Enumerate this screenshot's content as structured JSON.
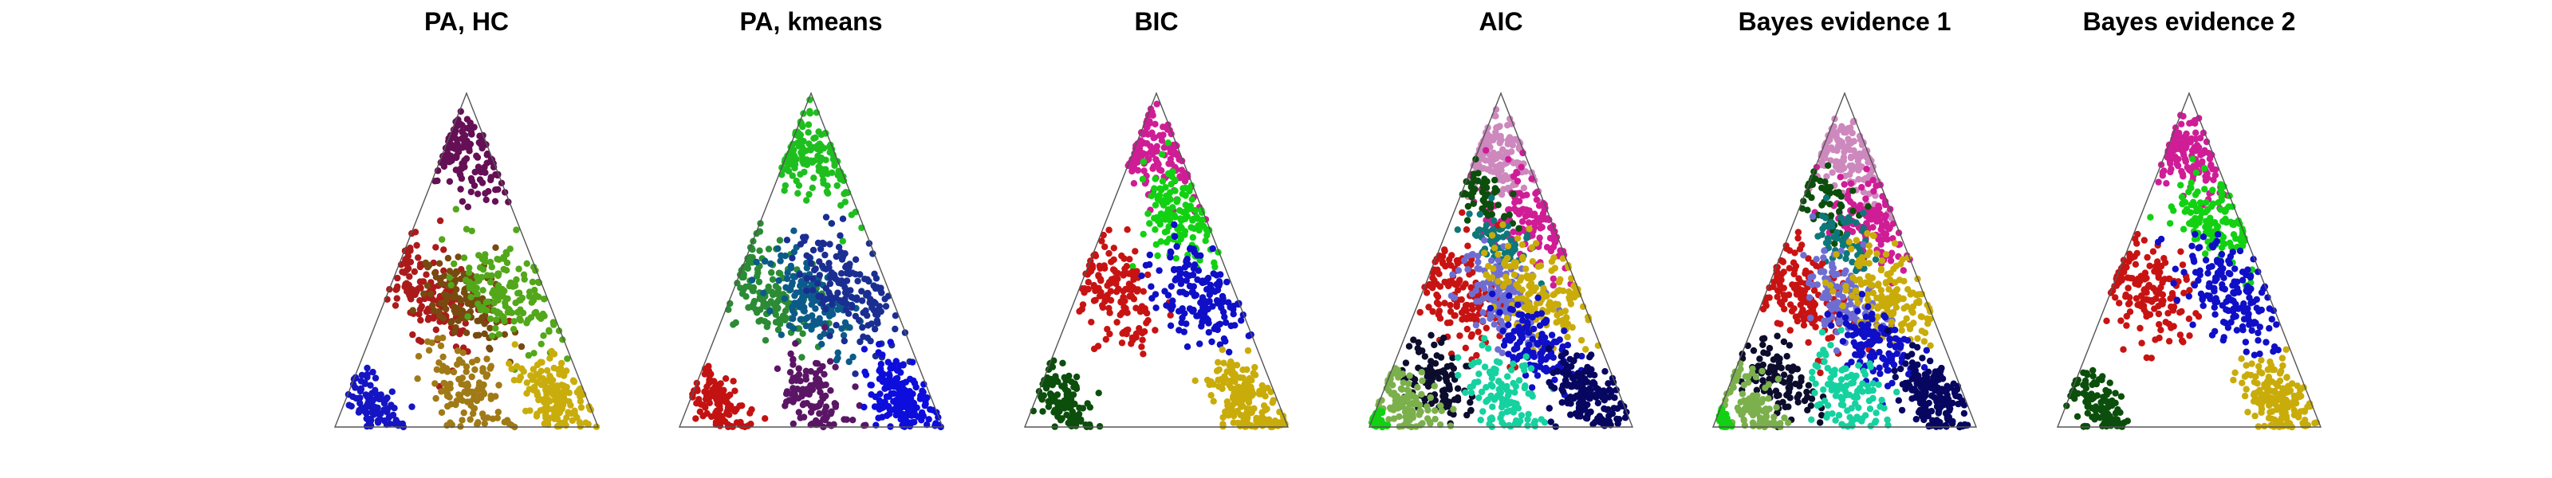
{
  "chart_data": [
    {
      "type": "scatter",
      "title": "PA, HC",
      "coordinate_system": "ternary-simplex",
      "series": [
        {
          "color": "#650f55",
          "region": "top"
        },
        {
          "color": "#ab1b1b",
          "region": "middle-left"
        },
        {
          "color": "#774a10",
          "region": "center"
        },
        {
          "color": "#53a71a",
          "region": "middle-right"
        },
        {
          "color": "#1515c3",
          "region": "bottom-left"
        },
        {
          "color": "#a07a17",
          "region": "bottom-center"
        },
        {
          "color": "#c9ad0c",
          "region": "bottom-right"
        }
      ]
    },
    {
      "type": "scatter",
      "title": "PA, kmeans",
      "coordinate_system": "ternary-simplex",
      "series": [
        {
          "color": "#1fbe1f",
          "region": "top"
        },
        {
          "color": "#2c8b35",
          "region": "middle-left"
        },
        {
          "color": "#0c5a8a",
          "region": "center"
        },
        {
          "color": "#1a2e92",
          "region": "middle-right"
        },
        {
          "color": "#c31212",
          "region": "bottom-left"
        },
        {
          "color": "#5a1665",
          "region": "bottom-center"
        },
        {
          "color": "#0d0ddc",
          "region": "bottom-right"
        }
      ]
    },
    {
      "type": "scatter",
      "title": "BIC",
      "coordinate_system": "ternary-simplex",
      "series": [
        {
          "color": "#cf1d96",
          "region": "top"
        },
        {
          "color": "#12d112",
          "region": "upper-right"
        },
        {
          "color": "#c81313",
          "region": "middle-left"
        },
        {
          "color": "#0f0fc7",
          "region": "middle-right"
        },
        {
          "color": "#0c4e0c",
          "region": "bottom-left"
        },
        {
          "color": "#c9ac0a",
          "region": "bottom-right"
        }
      ]
    },
    {
      "type": "scatter",
      "title": "AIC",
      "coordinate_system": "ternary-simplex",
      "series": [
        {
          "color": "#cd88bd",
          "region": "top"
        },
        {
          "color": "#cf1d96",
          "region": "upper-right"
        },
        {
          "color": "#0c4e0c",
          "region": "upper-left"
        },
        {
          "color": "#0e7779",
          "region": "upper-center"
        },
        {
          "color": "#c81313",
          "region": "middle-left"
        },
        {
          "color": "#6e6ed2",
          "region": "center"
        },
        {
          "color": "#c9ac0a",
          "region": "middle-right"
        },
        {
          "color": "#0f0fc7",
          "region": "lower-right"
        },
        {
          "color": "#0c0c2d",
          "region": "lower-left"
        },
        {
          "color": "#15d2a0",
          "region": "bottom-center"
        },
        {
          "color": "#070761",
          "region": "bottom-right"
        },
        {
          "color": "#7bb04c",
          "region": "bottom-left"
        },
        {
          "color": "#12d112",
          "region": "bottom-corner"
        }
      ]
    },
    {
      "type": "scatter",
      "title": "Bayes evidence 1",
      "coordinate_system": "ternary-simplex",
      "series": [
        {
          "color": "#cd88bd",
          "region": "top"
        },
        {
          "color": "#cf1d96",
          "region": "upper-right"
        },
        {
          "color": "#0c4e0c",
          "region": "upper-left"
        },
        {
          "color": "#0e7779",
          "region": "upper-center"
        },
        {
          "color": "#c81313",
          "region": "middle-left"
        },
        {
          "color": "#6e6ed2",
          "region": "center"
        },
        {
          "color": "#c9ac0a",
          "region": "middle-right"
        },
        {
          "color": "#0f0fc7",
          "region": "lower-right"
        },
        {
          "color": "#0c0c2d",
          "region": "lower-left"
        },
        {
          "color": "#15d2a0",
          "region": "bottom-center"
        },
        {
          "color": "#070761",
          "region": "bottom-right"
        },
        {
          "color": "#7bb04c",
          "region": "bottom-left"
        },
        {
          "color": "#12d112",
          "region": "bottom-corner"
        }
      ]
    },
    {
      "type": "scatter",
      "title": "Bayes evidence 2",
      "coordinate_system": "ternary-simplex",
      "series": [
        {
          "color": "#cf1d96",
          "region": "top"
        },
        {
          "color": "#12d112",
          "region": "upper-right"
        },
        {
          "color": "#c81313",
          "region": "middle-left"
        },
        {
          "color": "#0f0fc7",
          "region": "middle-right"
        },
        {
          "color": "#0c4e0c",
          "region": "bottom-left"
        },
        {
          "color": "#c9ac0a",
          "region": "bottom-right"
        }
      ]
    }
  ]
}
